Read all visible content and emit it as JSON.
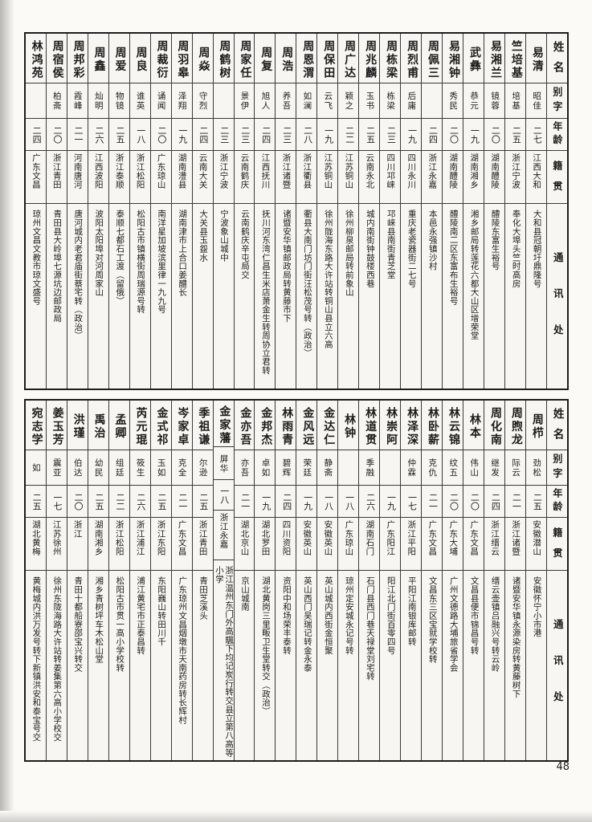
{
  "page": {
    "number": "48"
  },
  "headers": {
    "name": "姓名",
    "courtesy": "别字",
    "age": "年龄",
    "origin": "籍贯",
    "address": "通讯处"
  },
  "top_table": {
    "entries": [
      {
        "name": "易清",
        "courtesy": "昭佳",
        "age": "二七",
        "origin": "江西大和",
        "address": "大和县冠朝圩鼎隆号"
      },
      {
        "name": "竺培基",
        "courtesy": "培基",
        "age": "二五",
        "origin": "浙江宁波",
        "address": "奉化大埠头竺时高房"
      },
      {
        "name": "易湘兰",
        "courtesy": "镜蓉",
        "age": "二〇",
        "origin": "湖南醴陵",
        "address": "醴陵东富生裕号"
      },
      {
        "name": "武彝",
        "courtesy": "恭元",
        "age": "一九",
        "origin": "湖南湘乡",
        "address": "湘乡邮局转莲花六都大山区增荣堂"
      },
      {
        "name": "易湘钟",
        "courtesy": "秀民",
        "age": "二〇",
        "origin": "湖南醴陵",
        "address": "醴陵南二区东富布生裕号"
      },
      {
        "name": "周佩三",
        "courtesy": "",
        "age": "二四",
        "origin": "浙江永嘉",
        "address": "本邑永强镇沙村"
      },
      {
        "name": "周烈甫",
        "courtesy": "后庸",
        "age": "一九",
        "origin": "四川永川",
        "address": "重庆老瓷器街二七号"
      },
      {
        "name": "周栋梁",
        "courtesy": "栋梁",
        "age": "二三",
        "origin": "四川邛崃",
        "address": "邛崃县南街青芝堂"
      },
      {
        "name": "周兆麟",
        "courtesy": "玉书",
        "age": "二五",
        "origin": "云南永北",
        "address": "城内南街钟鼓楼西巷"
      },
      {
        "name": "周广达",
        "courtesy": "颖之",
        "age": "二二",
        "origin": "江苏铜山",
        "address": "徐州柳泉邮局转前象山"
      },
      {
        "name": "周保田",
        "courtesy": "云飞",
        "age": "一九",
        "origin": "江苏铜山",
        "address": "徐州陇海东路大许站转铜山县立六高"
      },
      {
        "name": "周恩渭",
        "courtesy": "如澜",
        "age": "二八",
        "origin": "浙江衢县",
        "address": "衢县大南门坊门街汪松茂号转（政治）"
      },
      {
        "name": "周浩",
        "courtesy": "养吾",
        "age": "二三",
        "origin": "浙江诸暨",
        "address": "诸暨安华镇邮政局转黄藤市下"
      },
      {
        "name": "周复",
        "courtesy": "旭人",
        "age": "二四",
        "origin": "江西抚川",
        "address": "抚川河东湾仁昌生米店萧金生转周协立君转"
      },
      {
        "name": "周家任",
        "courtesy": "景伊",
        "age": "二三",
        "origin": "云南鹤庆",
        "address": "云南鹤庆辛屯局交"
      },
      {
        "name": "周鹤树",
        "courtesy": "",
        "age": "二三",
        "origin": "浙江宁波",
        "address": "宁波象山城中"
      },
      {
        "name": "周焱",
        "courtesy": "守烈",
        "age": "二四",
        "origin": "云南大关",
        "address": "大关县玉盌水"
      },
      {
        "name": "周羽皋",
        "courtesy": "泽翔",
        "age": "一九",
        "origin": "湖南澧县",
        "address": "湖南津市上合口姜醴长"
      },
      {
        "name": "周裁衍",
        "courtesy": "诵闻",
        "age": "二〇",
        "origin": "广东琼山",
        "address": "南洋星加坡滨里律一九九号"
      },
      {
        "name": "周良",
        "courtesy": "谁英",
        "age": "一八",
        "origin": "浙江松阳",
        "address": "松阳古市镇横街周瑞源号转"
      },
      {
        "name": "周爱",
        "courtesy": "物镜",
        "age": "二五",
        "origin": "浙江泰顺",
        "address": "泰顺七都石工渡（留俄）"
      },
      {
        "name": "周鑫",
        "courtesy": "灿明",
        "age": "二六",
        "origin": "江西波阳",
        "address": "波阳太阳埠对河周家山"
      },
      {
        "name": "周邦彩",
        "courtesy": "霞峰",
        "age": "二一",
        "origin": "河南唐河",
        "address": "唐河城内老君庙街蔡宅转（政治）"
      },
      {
        "name": "周宿侯",
        "courtesy": "柏斋",
        "age": "二〇",
        "origin": "浙江青田",
        "address": "青田县大岭埠七源坑边邮政局"
      },
      {
        "name": "林鸿苑",
        "courtesy": "",
        "age": "二四",
        "origin": "广东文昌",
        "address": "琼州文昌文教市琼文盛号"
      }
    ]
  },
  "bottom_table": {
    "entries": [
      {
        "name": "周栉",
        "courtesy": "劲松",
        "age": "二五",
        "origin": "安徽潜山",
        "address": "安徽怀宁小市港"
      },
      {
        "name": "周煦龙",
        "courtesy": "际云",
        "age": "二一",
        "origin": "浙江诸暨",
        "address": "诸暨安华镇永源染房转黄藤树下"
      },
      {
        "name": "周化南",
        "courtesy": "继发",
        "age": "二四",
        "origin": "浙江缙云",
        "address": "缙云壶镇吕融兴号转云岭"
      },
      {
        "name": "林本",
        "courtesy": "伟山",
        "age": "二〇",
        "origin": "广东文昌",
        "address": "文昌县便市锦昌号转"
      },
      {
        "name": "林云锦",
        "courtesy": "纹五",
        "age": "二〇",
        "origin": "广东大埔",
        "address": "广州文德路大埔旅省学会"
      },
      {
        "name": "林卧薪",
        "courtesy": "克仇",
        "age": "二一",
        "origin": "广东文昌",
        "address": "文昌东三区宝就学校转"
      },
      {
        "name": "林泽深",
        "courtesy": "仲霖",
        "age": "一七",
        "origin": "浙江平阳",
        "address": "平阳江南银库邮转"
      },
      {
        "name": "林崇阿",
        "courtesy": "",
        "age": "一九",
        "origin": "广东阳江",
        "address": "阳江北门街百零四号"
      },
      {
        "name": "林道贯",
        "courtesy": "季融",
        "age": "二六",
        "origin": "湖南石门",
        "address": "石门县西门巷天禄堂刘宅转"
      },
      {
        "name": "林钟",
        "courtesy": "",
        "age": "一八",
        "origin": "广东琼山",
        "address": "琼州定安城永记号转"
      },
      {
        "name": "金达仁",
        "courtesy": "静斋",
        "age": "一八",
        "origin": "安徽英山",
        "address": "英山城内西街金恒聚"
      },
      {
        "name": "金风远",
        "courtesy": "荣廷",
        "age": "一九",
        "origin": "安徽英山",
        "address": "英山西门吴瑞记转金永泰"
      },
      {
        "name": "林雨青",
        "courtesy": "碧辉",
        "age": "二四",
        "origin": "四川资阳",
        "address": "资阳中和场荣丰泰转"
      },
      {
        "name": "金邦杰",
        "courtesy": "卓如",
        "age": "一九",
        "origin": "湖北罗田",
        "address": "湖北黄岗三里畈卫生堂转交（政治）"
      },
      {
        "name": "金亦吾",
        "courtesy": "亦吾",
        "age": "二一",
        "origin": "湖北京山",
        "address": "京山城南"
      },
      {
        "name": "金家藩",
        "courtesy": "屏华",
        "age": "一八",
        "origin": "浙江永嘉",
        "address": "浙江温州东门外高颿下均记炭行转交县立第八高等小学"
      },
      {
        "name": "季祖谦",
        "courtesy": "尔逊",
        "age": "二五",
        "origin": "浙江青田",
        "address": "青田芝溪头"
      },
      {
        "name": "岑家卓",
        "courtesy": "克全",
        "age": "二一",
        "origin": "广东文昌",
        "address": "广东琼州文昌烟墩市天南药房转长辉村"
      },
      {
        "name": "金式祁",
        "courtesy": "玉如",
        "age": "二五",
        "origin": "浙江东阳",
        "address": "东阳巍山转田川千"
      },
      {
        "name": "芮元琨",
        "courtesy": "筱生",
        "age": "二六",
        "origin": "浙江浦江",
        "address": "浦江黄宅市正泰昌转"
      },
      {
        "name": "孟卿",
        "courtesy": "组廷",
        "age": "二二",
        "origin": "浙江松阳",
        "address": "松阳古市贯一高小学校转"
      },
      {
        "name": "禹治",
        "courtesy": "幼民",
        "age": "二五",
        "origin": "湖南湘乡",
        "address": "湘乡青树坪车木松山堂"
      },
      {
        "name": "洪瑾",
        "courtesy": "伯达",
        "age": "二〇",
        "origin": "浙江",
        "address": "青田十都船寮邵宝兴转交"
      },
      {
        "name": "姜玉芳",
        "courtesy": "震亚",
        "age": "一七",
        "origin": "江苏徐州",
        "address": "徐州东陇海路大许站转姜集第六高小学校交"
      },
      {
        "name": "宛志学",
        "courtesy": "如",
        "age": "二五",
        "origin": "湖北黄梅",
        "address": "黄梅城内洪万发号转下新镇洪安和泰宝号交"
      }
    ]
  }
}
